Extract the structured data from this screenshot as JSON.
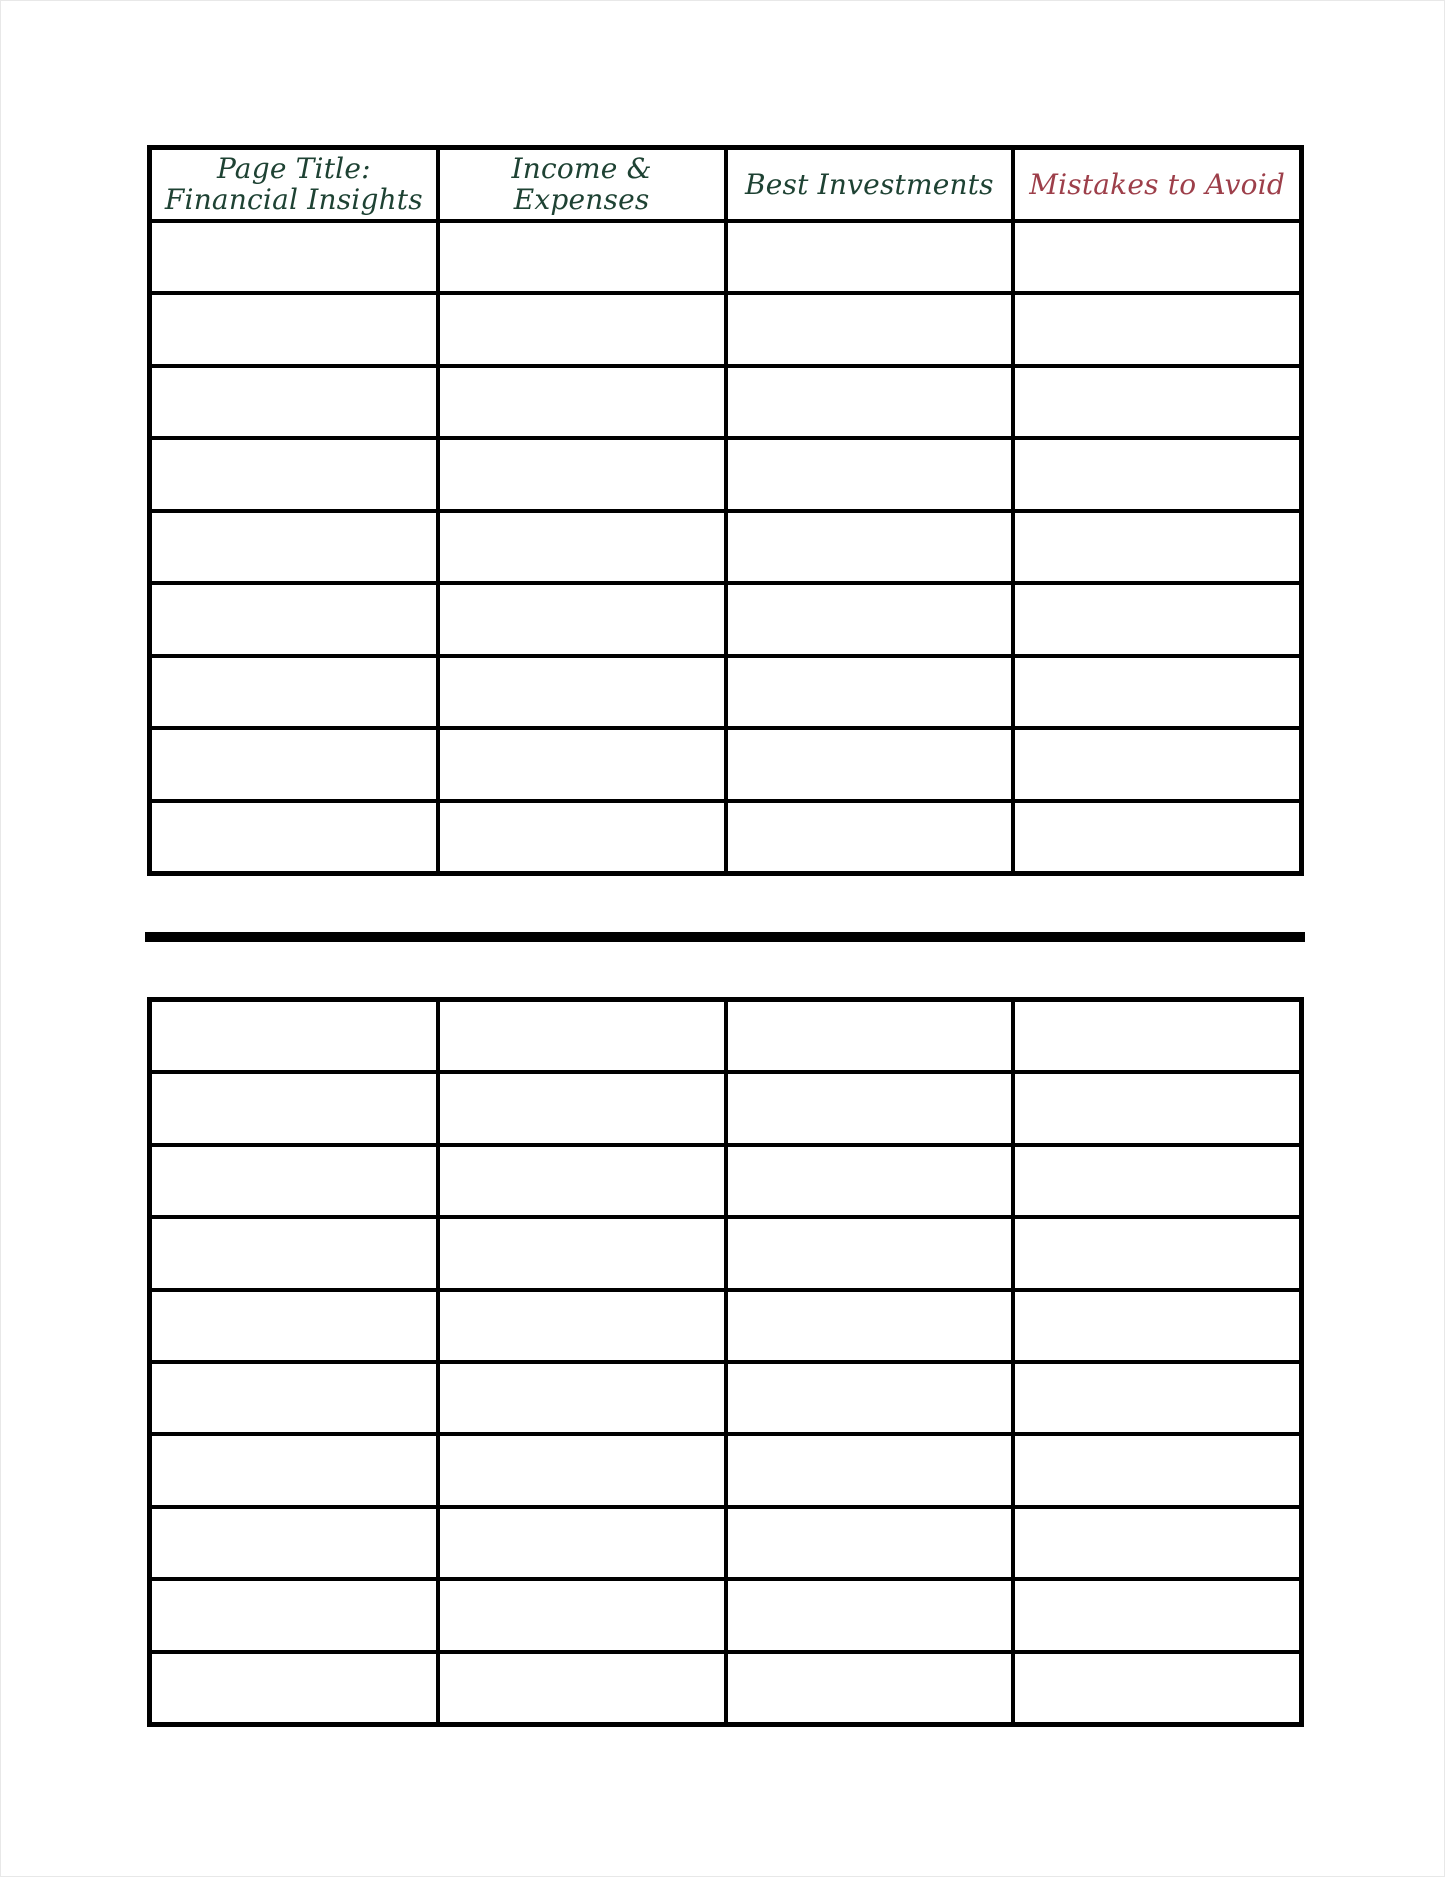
{
  "colors": {
    "page_background": "#ffffff",
    "table_border": "#000000",
    "header_green": "#1e4233",
    "header_red": "#9d3f4a"
  },
  "top_table": {
    "headers": [
      {
        "label": "Page Title: Financial Insights",
        "color": "#1e4233"
      },
      {
        "label": "Income & Expenses",
        "color": "#1e4233"
      },
      {
        "label": "Best Investments",
        "color": "#1e4233"
      },
      {
        "label": "Mistakes to Avoid",
        "color": "#9d3f4a"
      }
    ],
    "empty_rows": 9,
    "columns": 4
  },
  "bottom_table": {
    "empty_rows": 10,
    "columns": 4
  }
}
